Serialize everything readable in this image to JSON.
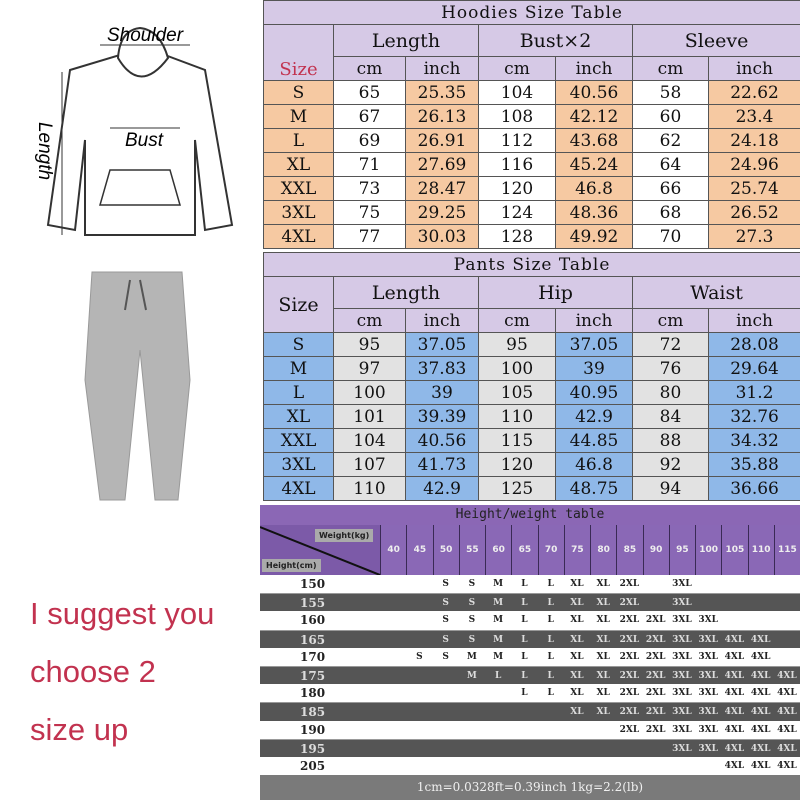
{
  "hoodie_figure": {
    "shoulder": "Shoulder",
    "bust": "Bust",
    "length": "Length"
  },
  "suggestion": [
    "I suggest you",
    "choose 2",
    "size up"
  ],
  "hoodies": {
    "title": "Hoodies Size Table",
    "size_label": "Size",
    "groups": [
      "Length",
      "Bust×2",
      "Sleeve"
    ],
    "units": [
      "cm",
      "inch",
      "cm",
      "inch",
      "cm",
      "inch"
    ],
    "rows": [
      [
        "S",
        "65",
        "25.35",
        "104",
        "40.56",
        "58",
        "22.62"
      ],
      [
        "M",
        "67",
        "26.13",
        "108",
        "42.12",
        "60",
        "23.4"
      ],
      [
        "L",
        "69",
        "26.91",
        "112",
        "43.68",
        "62",
        "24.18"
      ],
      [
        "XL",
        "71",
        "27.69",
        "116",
        "45.24",
        "64",
        "24.96"
      ],
      [
        "XXL",
        "73",
        "28.47",
        "120",
        "46.8",
        "66",
        "25.74"
      ],
      [
        "3XL",
        "75",
        "29.25",
        "124",
        "48.36",
        "68",
        "26.52"
      ],
      [
        "4XL",
        "77",
        "30.03",
        "128",
        "49.92",
        "70",
        "27.3"
      ]
    ]
  },
  "pants": {
    "title": "Pants Size Table",
    "size_label": "Size",
    "groups": [
      "Length",
      "Hip",
      "Waist"
    ],
    "units": [
      "cm",
      "inch",
      "cm",
      "inch",
      "cm",
      "inch"
    ],
    "rows": [
      [
        "S",
        "95",
        "37.05",
        "95",
        "37.05",
        "72",
        "28.08"
      ],
      [
        "M",
        "97",
        "37.83",
        "100",
        "39",
        "76",
        "29.64"
      ],
      [
        "L",
        "100",
        "39",
        "105",
        "40.95",
        "80",
        "31.2"
      ],
      [
        "XL",
        "101",
        "39.39",
        "110",
        "42.9",
        "84",
        "32.76"
      ],
      [
        "XXL",
        "104",
        "40.56",
        "115",
        "44.85",
        "88",
        "34.32"
      ],
      [
        "3XL",
        "107",
        "41.73",
        "120",
        "46.8",
        "92",
        "35.88"
      ],
      [
        "4XL",
        "110",
        "42.9",
        "125",
        "48.75",
        "94",
        "36.66"
      ]
    ]
  },
  "height_weight": {
    "title": "Height/weight table",
    "weight_label": "Weight(kg)",
    "height_label": "Height(cm)",
    "weights": [
      "40",
      "45",
      "50",
      "55",
      "60",
      "65",
      "70",
      "75",
      "80",
      "85",
      "90",
      "95",
      "100",
      "105",
      "110",
      "115"
    ],
    "rows": [
      {
        "h": "150",
        "s": [
          "",
          "",
          "S",
          "S",
          "M",
          "L",
          "L",
          "XL",
          "XL",
          "2XL",
          "",
          "3XL",
          "",
          "",
          "",
          ""
        ]
      },
      {
        "h": "155",
        "s": [
          "",
          "",
          "S",
          "S",
          "M",
          "L",
          "L",
          "XL",
          "XL",
          "2XL",
          "",
          "3XL",
          "",
          "",
          "",
          ""
        ]
      },
      {
        "h": "160",
        "s": [
          "",
          "",
          "S",
          "S",
          "M",
          "L",
          "L",
          "XL",
          "XL",
          "2XL",
          "2XL",
          "3XL",
          "3XL",
          "",
          "",
          ""
        ]
      },
      {
        "h": "165",
        "s": [
          "",
          "",
          "S",
          "S",
          "M",
          "L",
          "L",
          "XL",
          "XL",
          "2XL",
          "2XL",
          "3XL",
          "3XL",
          "4XL",
          "4XL",
          ""
        ]
      },
      {
        "h": "170",
        "s": [
          "",
          "S",
          "S",
          "M",
          "M",
          "L",
          "L",
          "XL",
          "XL",
          "2XL",
          "2XL",
          "3XL",
          "3XL",
          "4XL",
          "4XL",
          ""
        ]
      },
      {
        "h": "175",
        "s": [
          "",
          "",
          "",
          "M",
          "L",
          "L",
          "L",
          "XL",
          "XL",
          "2XL",
          "2XL",
          "3XL",
          "3XL",
          "4XL",
          "4XL",
          "4XL"
        ]
      },
      {
        "h": "180",
        "s": [
          "",
          "",
          "",
          "",
          "",
          "L",
          "L",
          "XL",
          "XL",
          "2XL",
          "2XL",
          "3XL",
          "3XL",
          "4XL",
          "4XL",
          "4XL"
        ]
      },
      {
        "h": "185",
        "s": [
          "",
          "",
          "",
          "",
          "",
          "",
          "",
          "XL",
          "XL",
          "2XL",
          "2XL",
          "3XL",
          "3XL",
          "4XL",
          "4XL",
          "4XL"
        ]
      },
      {
        "h": "190",
        "s": [
          "",
          "",
          "",
          "",
          "",
          "",
          "",
          "",
          "",
          "2XL",
          "2XL",
          "3XL",
          "3XL",
          "4XL",
          "4XL",
          "4XL"
        ]
      },
      {
        "h": "195",
        "s": [
          "",
          "",
          "",
          "",
          "",
          "",
          "",
          "",
          "",
          "",
          "",
          "3XL",
          "3XL",
          "4XL",
          "4XL",
          "4XL"
        ]
      },
      {
        "h": "205",
        "s": [
          "",
          "",
          "",
          "",
          "",
          "",
          "",
          "",
          "",
          "",
          "",
          "",
          "",
          "4XL",
          "4XL",
          "4XL"
        ]
      }
    ],
    "footer": "1cm=0.0328ft=0.39inch  1kg=2.2(lb)"
  },
  "colors": {
    "accent": "#c2324f",
    "hoodie_cells": "#f6c9a2",
    "pants_cells": "#8fb8e8",
    "header": "#d6c9e6",
    "hw_header": "#7c5aa8"
  }
}
